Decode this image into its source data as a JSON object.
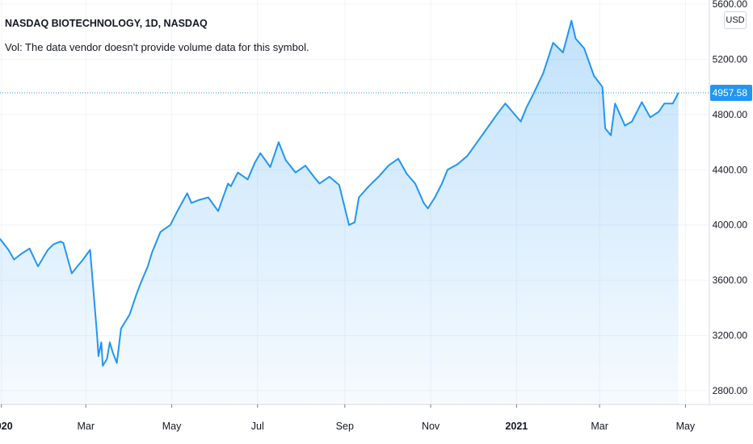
{
  "header": {
    "title": "NASDAQ BIOTECHNOLOGY, 1D, NASDAQ",
    "volume_note": "Vol: The data vendor doesn't provide volume data for this symbol."
  },
  "currency": "USD",
  "colors": {
    "line": "#2196f3",
    "fill": "#2196f3",
    "grid": "#f0f3fa",
    "axis": "#d6dbe4",
    "price_badge": "#2196f3"
  },
  "chart_data": {
    "type": "area",
    "symbol": "NASDAQ BIOTECHNOLOGY",
    "interval": "1D",
    "last_price": 4957.58,
    "last_price_label": "4957.58",
    "ylim": [
      2700,
      5630
    ],
    "y_ticks": [
      {
        "value": 2800,
        "label": "2800.00"
      },
      {
        "value": 3200,
        "label": "3200.00"
      },
      {
        "value": 3600,
        "label": "3600.00"
      },
      {
        "value": 4000,
        "label": "4000.00"
      },
      {
        "value": 4400,
        "label": "4400.00"
      },
      {
        "value": 4800,
        "label": "4800.00"
      },
      {
        "value": 5200,
        "label": "5200.00"
      },
      {
        "value": 5600,
        "label": "5600.00"
      }
    ],
    "x_ticks": [
      {
        "date": "2020-01-01",
        "label": "2020",
        "bold": true
      },
      {
        "date": "2020-03-01",
        "label": "Mar",
        "bold": false
      },
      {
        "date": "2020-05-01",
        "label": "May",
        "bold": false
      },
      {
        "date": "2020-07-01",
        "label": "Jul",
        "bold": false
      },
      {
        "date": "2020-09-01",
        "label": "Sep",
        "bold": false
      },
      {
        "date": "2020-11-01",
        "label": "Nov",
        "bold": false
      },
      {
        "date": "2021-01-01",
        "label": "2021",
        "bold": true
      },
      {
        "date": "2021-03-01",
        "label": "Mar",
        "bold": false
      },
      {
        "date": "2021-05-01",
        "label": "May",
        "bold": false
      }
    ],
    "xlim": [
      "2019-12-31",
      "2021-05-18"
    ],
    "series": [
      {
        "x": [
          "2019-12-31",
          "2020-01-06",
          "2020-01-10",
          "2020-01-15",
          "2020-01-21",
          "2020-01-27",
          "2020-02-03",
          "2020-02-07",
          "2020-02-12",
          "2020-02-14",
          "2020-02-20",
          "2020-02-24",
          "2020-02-28",
          "2020-03-04",
          "2020-03-09",
          "2020-03-10",
          "2020-03-12",
          "2020-03-13",
          "2020-03-16",
          "2020-03-18",
          "2020-03-20",
          "2020-03-23",
          "2020-03-26",
          "2020-04-01",
          "2020-04-06",
          "2020-04-09",
          "2020-04-14",
          "2020-04-17",
          "2020-04-23",
          "2020-04-30",
          "2020-05-05",
          "2020-05-12",
          "2020-05-15",
          "2020-05-20",
          "2020-05-27",
          "2020-06-03",
          "2020-06-10",
          "2020-06-12",
          "2020-06-17",
          "2020-06-24",
          "2020-06-29",
          "2020-07-03",
          "2020-07-10",
          "2020-07-16",
          "2020-07-21",
          "2020-07-28",
          "2020-08-04",
          "2020-08-10",
          "2020-08-14",
          "2020-08-21",
          "2020-08-28",
          "2020-09-04",
          "2020-09-08",
          "2020-09-11",
          "2020-09-18",
          "2020-09-25",
          "2020-10-02",
          "2020-10-09",
          "2020-10-15",
          "2020-10-21",
          "2020-10-27",
          "2020-10-30",
          "2020-11-04",
          "2020-11-09",
          "2020-11-13",
          "2020-11-20",
          "2020-11-27",
          "2020-12-04",
          "2020-12-11",
          "2020-12-18",
          "2020-12-24",
          "2021-01-04",
          "2021-01-08",
          "2021-01-13",
          "2021-01-20",
          "2021-01-27",
          "2021-02-03",
          "2021-02-09",
          "2021-02-12",
          "2021-02-18",
          "2021-02-25",
          "2021-03-03",
          "2021-03-05",
          "2021-03-09",
          "2021-03-12",
          "2021-03-19",
          "2021-03-24",
          "2021-03-31",
          "2021-04-06",
          "2021-04-12",
          "2021-04-16",
          "2021-04-22",
          "2021-04-26"
        ],
        "values": [
          3900,
          3820,
          3750,
          3790,
          3830,
          3700,
          3820,
          3860,
          3880,
          3870,
          3650,
          3700,
          3750,
          3820,
          3200,
          3050,
          3150,
          2980,
          3030,
          3150,
          3080,
          3000,
          3250,
          3350,
          3500,
          3580,
          3700,
          3800,
          3950,
          4000,
          4100,
          4230,
          4160,
          4180,
          4200,
          4100,
          4300,
          4280,
          4380,
          4330,
          4450,
          4520,
          4420,
          4600,
          4470,
          4380,
          4430,
          4350,
          4300,
          4350,
          4290,
          4000,
          4020,
          4200,
          4280,
          4350,
          4430,
          4480,
          4370,
          4300,
          4160,
          4120,
          4200,
          4300,
          4400,
          4440,
          4500,
          4600,
          4700,
          4800,
          4880,
          4750,
          4850,
          4950,
          5100,
          5320,
          5250,
          5480,
          5350,
          5280,
          5080,
          5000,
          4700,
          4650,
          4880,
          4720,
          4750,
          4890,
          4780,
          4820,
          4880,
          4880,
          4957.58
        ]
      }
    ]
  }
}
